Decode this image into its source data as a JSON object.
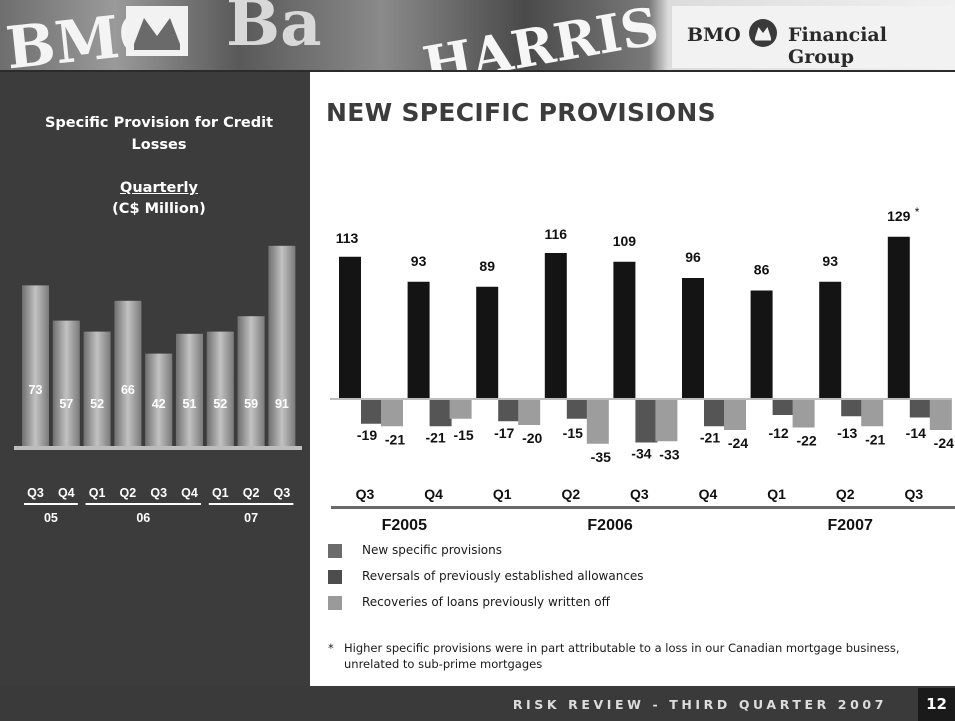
{
  "header": {
    "banner_words": [
      "BMO",
      "Ba",
      "HARRIS"
    ],
    "brand": {
      "left": "BMO",
      "right": "Financial Group"
    }
  },
  "sidebar": {
    "title": "Specific Provision for Credit Losses",
    "subtitle_underlined": "Quarterly",
    "subtitle_unit": "(C$ Million)"
  },
  "main": {
    "title": "NEW SPECIFIC PROVISIONS",
    "legend": [
      {
        "label": "New specific provisions",
        "color": "#6b6b6b"
      },
      {
        "label": "Reversals of previously established allowances",
        "color": "#4d4d4d"
      },
      {
        "label": "Recoveries of loans previously written off",
        "color": "#9a9a9a"
      }
    ],
    "footnote_mark": "*",
    "footnote": "Higher specific provisions were in part attributable to a loss in our Canadian mortgage business, unrelated to sub-prime mortgages"
  },
  "footer": {
    "text": "RISK REVIEW - THIRD QUARTER 2007",
    "page": "12"
  },
  "colors": {
    "new": "#141414",
    "reversal": "#555555",
    "recovery": "#9d9d9d",
    "sidebar_bar": "#a8a8a8"
  },
  "chart_data": [
    {
      "type": "bar",
      "categories": [
        "Q3",
        "Q4",
        "Q1",
        "Q2",
        "Q3",
        "Q4",
        "Q1",
        "Q2",
        "Q3"
      ],
      "values": [
        73,
        57,
        52,
        66,
        42,
        51,
        52,
        59,
        91
      ],
      "groups": [
        {
          "label": "05",
          "span": [
            0,
            1
          ]
        },
        {
          "label": "06",
          "span": [
            2,
            5
          ]
        },
        {
          "label": "07",
          "span": [
            6,
            8
          ]
        }
      ]
    },
    {
      "type": "bar",
      "categories": [
        "Q3",
        "Q4",
        "Q1",
        "Q2",
        "Q3",
        "Q4",
        "Q1",
        "Q2",
        "Q3"
      ],
      "series": [
        {
          "name": "New specific provisions",
          "values": [
            113,
            93,
            89,
            116,
            109,
            96,
            86,
            93,
            129
          ]
        },
        {
          "name": "Reversals of previously established allowances",
          "values": [
            -19,
            -21,
            -17,
            -15,
            -34,
            -21,
            -12,
            -13,
            -14
          ]
        },
        {
          "name": "Recoveries of loans previously written off",
          "values": [
            -21,
            -15,
            -20,
            -35,
            -33,
            -24,
            -22,
            -21,
            -24
          ]
        }
      ],
      "annotations": [
        {
          "index": 8,
          "text": "*"
        }
      ],
      "groups": [
        {
          "label": "F2005",
          "span": [
            0,
            1
          ]
        },
        {
          "label": "F2006",
          "span": [
            2,
            5
          ]
        },
        {
          "label": "F2007",
          "span": [
            6,
            8
          ]
        }
      ]
    }
  ]
}
